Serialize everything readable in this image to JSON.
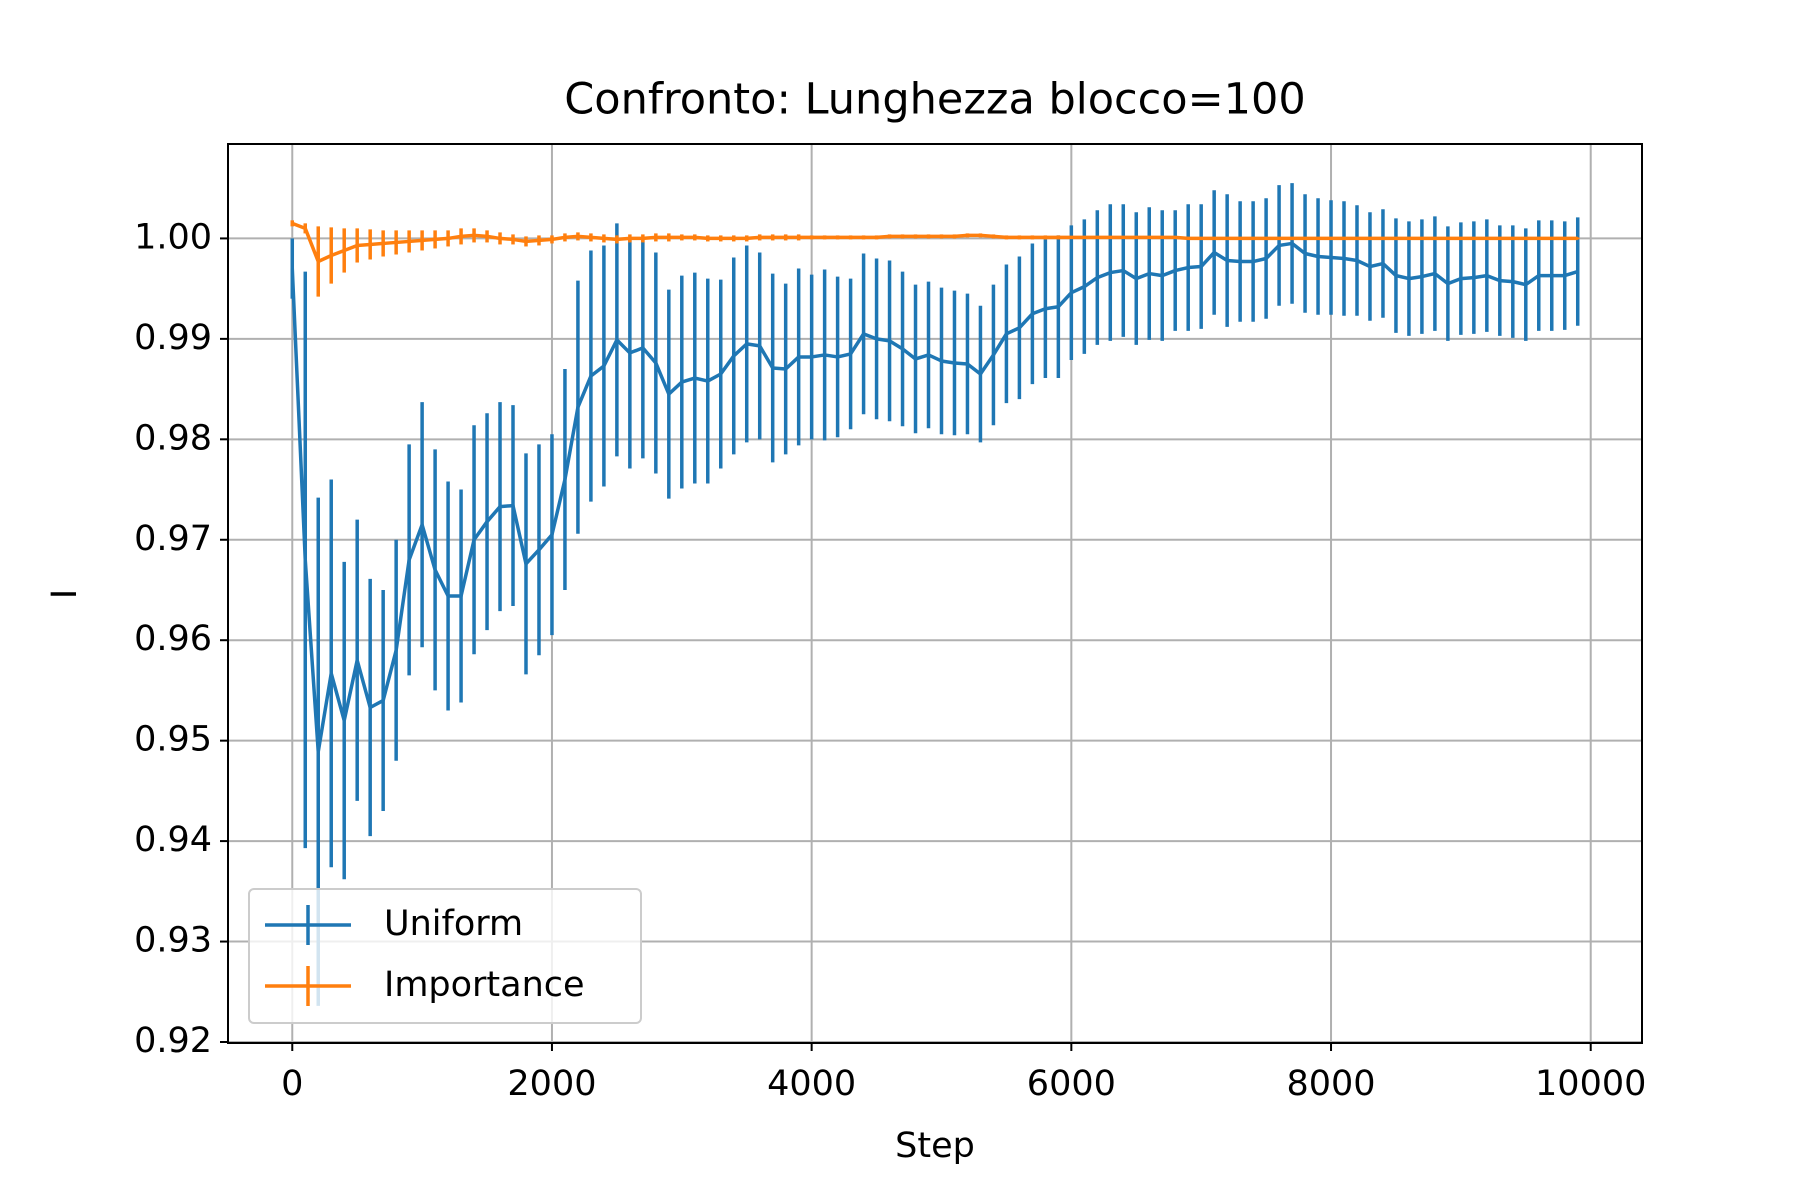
{
  "chart_data": {
    "type": "line",
    "title": "Confronto: Lunghezza blocco=100",
    "xlabel": "Step",
    "ylabel": "I",
    "x": [
      0,
      100,
      200,
      300,
      400,
      500,
      600,
      700,
      800,
      900,
      1000,
      1100,
      1200,
      1300,
      1400,
      1500,
      1600,
      1700,
      1800,
      1900,
      2000,
      2100,
      2200,
      2300,
      2400,
      2500,
      2600,
      2700,
      2800,
      2900,
      3000,
      3100,
      3200,
      3300,
      3400,
      3500,
      3600,
      3700,
      3800,
      3900,
      4000,
      4100,
      4200,
      4300,
      4400,
      4500,
      4600,
      4700,
      4800,
      4900,
      5000,
      5100,
      5200,
      5300,
      5400,
      5500,
      5600,
      5700,
      5800,
      5900,
      6000,
      6100,
      6200,
      6300,
      6400,
      6500,
      6600,
      6700,
      6800,
      6900,
      7000,
      7100,
      7200,
      7300,
      7400,
      7500,
      7600,
      7700,
      7800,
      7900,
      8000,
      8100,
      8200,
      8300,
      8400,
      8500,
      8600,
      8700,
      8800,
      8900,
      9000,
      9100,
      9200,
      9300,
      9400,
      9500,
      9600,
      9700,
      9800,
      9900
    ],
    "series": [
      {
        "name": "Uniform",
        "color": "#1f77b4",
        "values": [
          0.997,
          0.968,
          0.9489,
          0.9567,
          0.952,
          0.958,
          0.9533,
          0.954,
          0.959,
          0.968,
          0.9715,
          0.967,
          0.9644,
          0.9644,
          0.97,
          0.9718,
          0.9733,
          0.9734,
          0.9676,
          0.969,
          0.9705,
          0.976,
          0.9832,
          0.9863,
          0.9873,
          0.9899,
          0.9886,
          0.9891,
          0.9876,
          0.9845,
          0.9857,
          0.9861,
          0.9858,
          0.9865,
          0.9883,
          0.9895,
          0.9893,
          0.9871,
          0.987,
          0.9882,
          0.9882,
          0.9884,
          0.9882,
          0.9885,
          0.9905,
          0.99,
          0.9898,
          0.989,
          0.988,
          0.9884,
          0.9878,
          0.9876,
          0.9875,
          0.9865,
          0.9884,
          0.9905,
          0.9911,
          0.9925,
          0.993,
          0.9932,
          0.9946,
          0.9952,
          0.9961,
          0.9966,
          0.9968,
          0.996,
          0.9965,
          0.9963,
          0.9968,
          0.9971,
          0.9972,
          0.9986,
          0.9978,
          0.9977,
          0.9977,
          0.998,
          0.9993,
          0.9995,
          0.9985,
          0.9982,
          0.9981,
          0.998,
          0.9978,
          0.9972,
          0.9975,
          0.9963,
          0.996,
          0.9962,
          0.9965,
          0.9955,
          0.996,
          0.9961,
          0.9963,
          0.9958,
          0.9957,
          0.9954,
          0.9963,
          0.9963,
          0.9963,
          0.9967
        ],
        "errors": [
          0.003,
          0.0287,
          0.0253,
          0.0193,
          0.0158,
          0.014,
          0.0128,
          0.011,
          0.011,
          0.0115,
          0.0122,
          0.012,
          0.0114,
          0.0106,
          0.0114,
          0.0108,
          0.0104,
          0.01,
          0.011,
          0.0105,
          0.01,
          0.011,
          0.0126,
          0.0125,
          0.012,
          0.0116,
          0.0115,
          0.011,
          0.011,
          0.0104,
          0.0106,
          0.0105,
          0.0102,
          0.0094,
          0.0098,
          0.0098,
          0.0093,
          0.0094,
          0.0085,
          0.0088,
          0.0082,
          0.0085,
          0.008,
          0.0075,
          0.008,
          0.008,
          0.008,
          0.0077,
          0.0074,
          0.0073,
          0.0073,
          0.0072,
          0.007,
          0.0068,
          0.007,
          0.0069,
          0.0071,
          0.007,
          0.0069,
          0.0071,
          0.0067,
          0.0067,
          0.0067,
          0.0068,
          0.0066,
          0.0066,
          0.0066,
          0.0065,
          0.006,
          0.0063,
          0.0062,
          0.0062,
          0.0066,
          0.006,
          0.006,
          0.006,
          0.006,
          0.006,
          0.0059,
          0.0058,
          0.0057,
          0.0057,
          0.0055,
          0.0054,
          0.0054,
          0.0057,
          0.0057,
          0.0057,
          0.0057,
          0.0057,
          0.0056,
          0.0056,
          0.0056,
          0.0055,
          0.0056,
          0.0056,
          0.0055,
          0.0055,
          0.0054,
          0.0054
        ]
      },
      {
        "name": "Importance",
        "color": "#ff7f0e",
        "values": [
          1.0015,
          1.001,
          0.9977,
          0.9983,
          0.9988,
          0.9993,
          0.9994,
          0.9995,
          0.9996,
          0.9997,
          0.9998,
          0.9999,
          1.0,
          1.0002,
          1.0003,
          1.0002,
          1.0,
          0.9999,
          0.9997,
          0.9998,
          0.9999,
          1.0001,
          1.0002,
          1.0001,
          1.0,
          0.9999,
          1.0,
          1.0,
          1.0001,
          1.0001,
          1.0001,
          1.0001,
          1.0,
          1.0,
          1.0,
          1.0,
          1.0001,
          1.0001,
          1.0001,
          1.0001,
          1.0001,
          1.0001,
          1.0001,
          1.0001,
          1.0001,
          1.0001,
          1.0002,
          1.0002,
          1.0002,
          1.0002,
          1.0002,
          1.0002,
          1.0003,
          1.0003,
          1.0002,
          1.0001,
          1.0001,
          1.0001,
          1.0001,
          1.0001,
          1.0001,
          1.0001,
          1.0001,
          1.0001,
          1.0001,
          1.0001,
          1.0001,
          1.0001,
          1.0001,
          1.0,
          1.0,
          1.0,
          1.0,
          1.0,
          1.0,
          1.0,
          1.0,
          1.0,
          1.0,
          1.0,
          1.0,
          1.0,
          1.0,
          1.0,
          1.0,
          1.0,
          1.0,
          1.0,
          1.0,
          1.0,
          1.0,
          1.0,
          1.0,
          1.0,
          1.0,
          1.0,
          1.0,
          1.0,
          1.0,
          1.0
        ],
        "errors": [
          0.0003,
          0.0005,
          0.0035,
          0.0028,
          0.0022,
          0.0017,
          0.0015,
          0.0013,
          0.0012,
          0.0011,
          0.001,
          0.0009,
          0.0008,
          0.0008,
          0.0007,
          0.0006,
          0.0006,
          0.0005,
          0.0005,
          0.0005,
          0.0004,
          0.0004,
          0.0004,
          0.0004,
          0.0004,
          0.0004,
          0.0004,
          0.0004,
          0.0004,
          0.0004,
          0.0003,
          0.0003,
          0.0003,
          0.0003,
          0.0003,
          0.0003,
          0.0003,
          0.0003,
          0.0003,
          0.0003,
          0.0002,
          0.0002,
          0.0002,
          0.0002,
          0.0002,
          0.0002,
          0.0002,
          0.0002,
          0.0002,
          0.0002,
          0.0002,
          0.0002,
          0.0002,
          0.0002,
          0.0002,
          0.0002,
          0.0002,
          0.0002,
          0.0002,
          0.0002,
          0.0001,
          0.0001,
          0.0001,
          0.0001,
          0.0001,
          0.0001,
          0.0001,
          0.0001,
          0.0001,
          0.0001,
          0.0001,
          0.0001,
          0.0001,
          0.0001,
          0.0001,
          0.0001,
          0.0001,
          0.0001,
          0.0001,
          0.0001,
          0.0001,
          0.0001,
          0.0001,
          0.0001,
          0.0001,
          0.0001,
          0.0001,
          0.0001,
          0.0001,
          0.0001,
          0.0001,
          0.0001,
          0.0001,
          0.0001,
          0.0001,
          0.0001,
          0.0001,
          0.0001,
          0.0001,
          0.0001
        ]
      }
    ],
    "xlim": [
      -495,
      10395
    ],
    "xticks": [
      0,
      2000,
      4000,
      6000,
      8000,
      10000
    ],
    "ylim": [
      0.9199,
      1.0094
    ],
    "yticks": [
      0.92,
      0.93,
      0.94,
      0.95,
      0.96,
      0.97,
      0.98,
      0.99,
      {
        "value": 1.0,
        "label": "1.00"
      }
    ],
    "grid": true,
    "legend": "lower left"
  }
}
